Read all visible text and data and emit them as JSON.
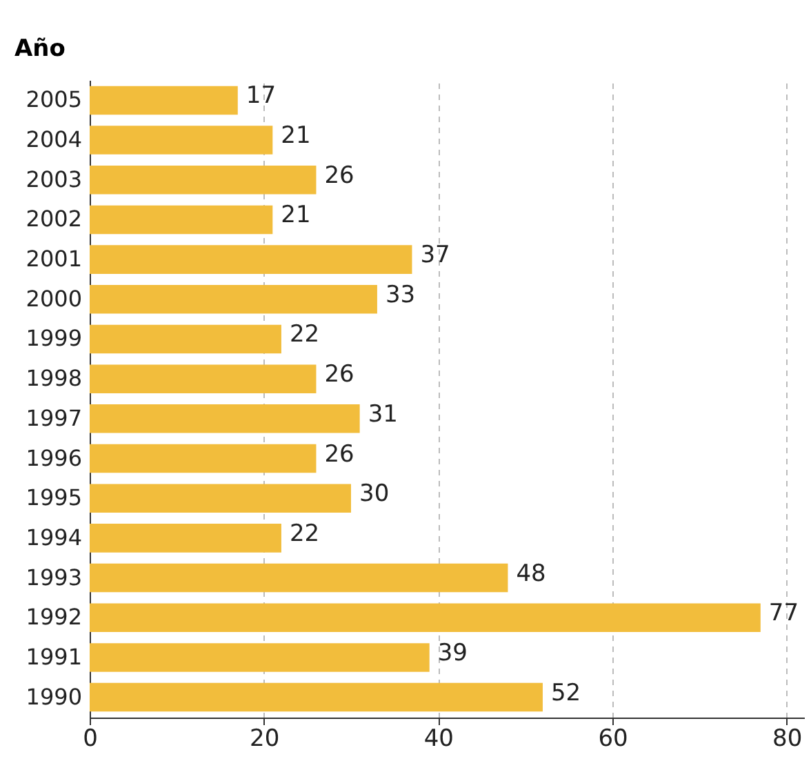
{
  "chart_data": {
    "type": "bar",
    "orientation": "horizontal",
    "ylabel": "Año",
    "categories": [
      "2005",
      "2004",
      "2003",
      "2002",
      "2001",
      "2000",
      "1999",
      "1998",
      "1997",
      "1996",
      "1995",
      "1994",
      "1993",
      "1992",
      "1991",
      "1990"
    ],
    "values": [
      17,
      21,
      26,
      21,
      37,
      33,
      22,
      26,
      31,
      26,
      30,
      22,
      48,
      77,
      39,
      52
    ],
    "color": "#f2bd3c",
    "xlim": [
      0,
      82
    ],
    "xticks": [
      0,
      20,
      40,
      60,
      80
    ],
    "grid": "x",
    "data_labels": true
  }
}
